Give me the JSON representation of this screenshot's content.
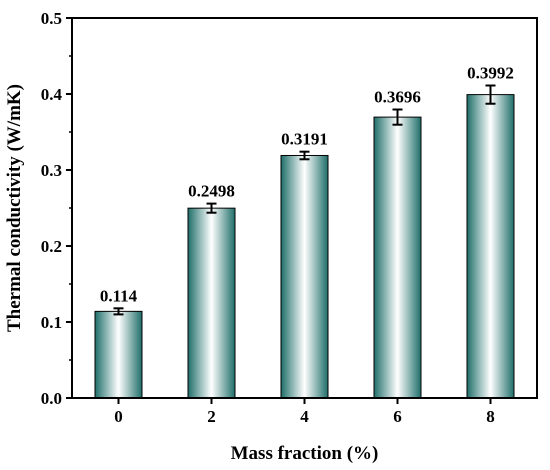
{
  "chart_data": {
    "type": "bar",
    "categories": [
      "0",
      "2",
      "4",
      "6",
      "8"
    ],
    "values": [
      0.114,
      0.2498,
      0.3191,
      0.3696,
      0.3992
    ],
    "value_labels": [
      "0.114",
      "0.2498",
      "0.3191",
      "0.3696",
      "0.3992"
    ],
    "errors": [
      0.004,
      0.006,
      0.005,
      0.01,
      0.012
    ],
    "xlabel": "Mass fraction (%)",
    "ylabel": "Thermal conductivity (W/mK)",
    "ylim": [
      0,
      0.5
    ],
    "yticks": [
      "0.0",
      "0.1",
      "0.2",
      "0.3",
      "0.4",
      "0.5"
    ],
    "ytick_values": [
      0,
      0.1,
      0.2,
      0.3,
      0.4,
      0.5
    ],
    "grid": false,
    "bar_color": "#1f6f6a"
  }
}
